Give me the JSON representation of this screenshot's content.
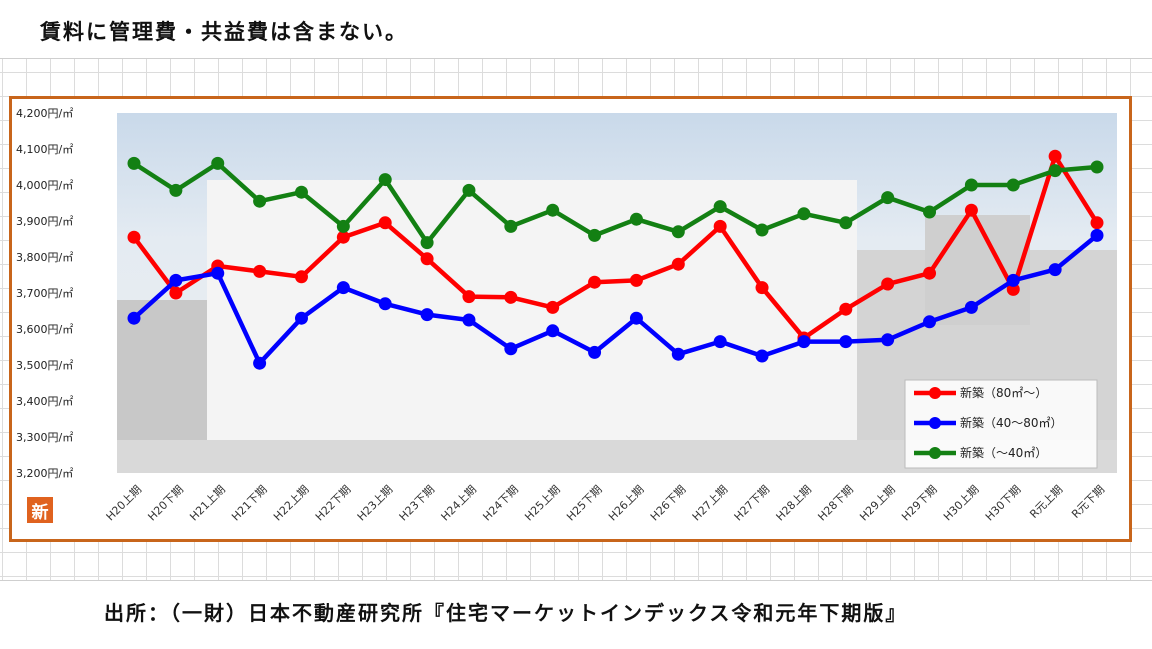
{
  "note": "賃料に管理費・共益費は含まない。",
  "source": "出所：（一財）日本不動産研究所『住宅マーケットインデックス令和元年下期版』",
  "badge": "新",
  "chart_data": {
    "type": "line",
    "title": "",
    "xlabel": "",
    "ylabel": "",
    "ylim": [
      3200,
      4200
    ],
    "yticks": [
      "3,200円/㎡",
      "3,300円/㎡",
      "3,400円/㎡",
      "3,500円/㎡",
      "3,600円/㎡",
      "3,700円/㎡",
      "3,800円/㎡",
      "3,900円/㎡",
      "4,000円/㎡",
      "4,100円/㎡",
      "4,200円/㎡"
    ],
    "categories": [
      "H20上期",
      "H20下期",
      "H21上期",
      "H21下期",
      "H22上期",
      "H22下期",
      "H23上期",
      "H23下期",
      "H24上期",
      "H24下期",
      "H25上期",
      "H25下期",
      "H26上期",
      "H26下期",
      "H27上期",
      "H27下期",
      "H28上期",
      "H28下期",
      "H29上期",
      "H29下期",
      "H30上期",
      "H30下期",
      "R元上期",
      "R元下期"
    ],
    "legend_position": "bottom-right",
    "series": [
      {
        "name": "新築（80㎡～）",
        "color": "#ff0000",
        "values": [
          3855,
          3700,
          3775,
          3760,
          3745,
          3855,
          3895,
          3795,
          3690,
          3688,
          3660,
          3730,
          3735,
          3780,
          3885,
          3715,
          3575,
          3655,
          3725,
          3755,
          3930,
          3710,
          4080,
          3895
        ]
      },
      {
        "name": "新築（40～80㎡）",
        "color": "#0000ff",
        "values": [
          3630,
          3735,
          3755,
          3505,
          3630,
          3715,
          3670,
          3640,
          3625,
          3545,
          3595,
          3535,
          3630,
          3530,
          3565,
          3525,
          3565,
          3565,
          3570,
          3620,
          3660,
          3735,
          3765,
          3860
        ]
      },
      {
        "name": "新築（～40㎡）",
        "color": "#138013",
        "values": [
          4060,
          3985,
          4060,
          3955,
          3980,
          3885,
          4015,
          3840,
          3985,
          3885,
          3930,
          3860,
          3905,
          3870,
          3940,
          3875,
          3920,
          3895,
          3965,
          3925,
          4000,
          4000,
          4040,
          4050
        ]
      }
    ]
  }
}
